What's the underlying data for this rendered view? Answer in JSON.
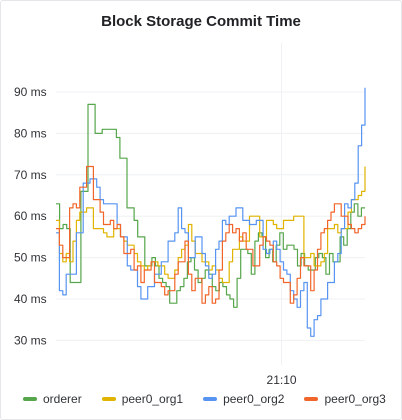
{
  "panel": {
    "title": "Block Storage Commit Time"
  },
  "chart_data": {
    "type": "line",
    "title": "Block Storage Commit Time",
    "xlabel": "",
    "ylabel": "",
    "unit": "ms",
    "y_ticks": [
      "90 ms",
      "80 ms",
      "70 ms",
      "60 ms",
      "50 ms",
      "40 ms",
      "30 ms"
    ],
    "y_tick_values": [
      90,
      80,
      70,
      60,
      50,
      40,
      30
    ],
    "ylim": [
      26,
      97
    ],
    "x_tick_label": "21:10",
    "x_tick_fraction": 0.73,
    "grid": true,
    "legend_position": "bottom",
    "series": [
      {
        "name": "orderer",
        "color": "#56a64b",
        "values": [
          63,
          57,
          58,
          57,
          44,
          44,
          44,
          66,
          66,
          87,
          87,
          80,
          80,
          81,
          81,
          81,
          81,
          79,
          74,
          74,
          62,
          62,
          59,
          55,
          55,
          48,
          48,
          50,
          48,
          45,
          44,
          43,
          39,
          39,
          42,
          43,
          45,
          49,
          50,
          47,
          44,
          45,
          47,
          46,
          43,
          42,
          44,
          43,
          41,
          40,
          38,
          45,
          52,
          52,
          51,
          46,
          54,
          56,
          55,
          50,
          52,
          49,
          53,
          56,
          52,
          53,
          53,
          52,
          48,
          51,
          48,
          47,
          47,
          50,
          51,
          50,
          46,
          51,
          49,
          49,
          55,
          53,
          57,
          61,
          63,
          60,
          62,
          62
        ]
      },
      {
        "name": "peer0_org1",
        "color": "#e0b400",
        "values": [
          59,
          51,
          49,
          51,
          49,
          54,
          59,
          61,
          61,
          62,
          62,
          57,
          57,
          57,
          56,
          55,
          55,
          57,
          57,
          55,
          54,
          53,
          53,
          51,
          49,
          48,
          47,
          48,
          49,
          49,
          48,
          48,
          46,
          45,
          45,
          47,
          50,
          52,
          53,
          58,
          54,
          51,
          51,
          49,
          49,
          47,
          48,
          47,
          45,
          44,
          44,
          49,
          52,
          52,
          55,
          54,
          54,
          60,
          60,
          60,
          55,
          55,
          59,
          59,
          58,
          57,
          57,
          59,
          59,
          59,
          60,
          60,
          60,
          50,
          50,
          51,
          48,
          48,
          49,
          51,
          57,
          57,
          58,
          56,
          57,
          57,
          61,
          64,
          64,
          65,
          66,
          72
        ]
      },
      {
        "name": "peer0_org2",
        "color": "#5794f2",
        "values": [
          56,
          42,
          41,
          46,
          46,
          46,
          56,
          56,
          68,
          68,
          69,
          69,
          67,
          64,
          63,
          63,
          63,
          63,
          58,
          55,
          55,
          48,
          47,
          47,
          43,
          40,
          40,
          43,
          43,
          46,
          46,
          49,
          49,
          54,
          54,
          56,
          62,
          57,
          56,
          50,
          50,
          55,
          55,
          51,
          48,
          45,
          46,
          52,
          54,
          59,
          58,
          60,
          60,
          62,
          62,
          59,
          59,
          58,
          58,
          59,
          59,
          52,
          51,
          52,
          54,
          52,
          49,
          47,
          46,
          42,
          40,
          38,
          42,
          44,
          33,
          31,
          35,
          36,
          40,
          40,
          44,
          44,
          49,
          51,
          57,
          63,
          62,
          64,
          68,
          77,
          82,
          91
        ]
      },
      {
        "name": "peer0_org3",
        "color": "#f2652a",
        "values": [
          57,
          53,
          50,
          50,
          62,
          63,
          62,
          67,
          67,
          72,
          72,
          64,
          64,
          61,
          58,
          58,
          59,
          57,
          58,
          55,
          51,
          51,
          52,
          47,
          48,
          44,
          47,
          47,
          49,
          44,
          44,
          43,
          41,
          42,
          42,
          46,
          49,
          49,
          54,
          46,
          42,
          45,
          45,
          39,
          41,
          43,
          39,
          40,
          47,
          54,
          56,
          58,
          56,
          57,
          54,
          56,
          52,
          52,
          48,
          48,
          53,
          55,
          54,
          53,
          49,
          48,
          45,
          44,
          44,
          39,
          41,
          45,
          50,
          48,
          48,
          42,
          47,
          52,
          56,
          57,
          59,
          61,
          63,
          63,
          60,
          60,
          58,
          57,
          56,
          57,
          58,
          60
        ]
      }
    ]
  }
}
